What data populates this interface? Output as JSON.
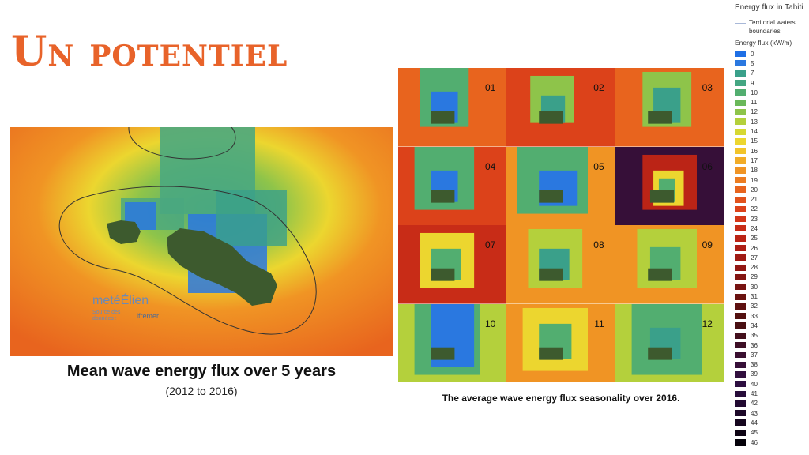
{
  "title": "Un potentiel",
  "main_map": {
    "caption": "Mean wave energy flux over 5 years",
    "subcaption": "(2012 to 2016)",
    "watermark": [
      "metéÉlien",
      "Source des",
      "données :",
      "ifremer"
    ]
  },
  "monthly_grid": {
    "caption": "The average wave energy flux seasonality over 2016.",
    "months": [
      "01",
      "02",
      "03",
      "04",
      "05",
      "06",
      "07",
      "08",
      "09",
      "10",
      "11",
      "12"
    ]
  },
  "legend": {
    "title": "Energy flux in Tahiti",
    "territorial_label": "Territorial waters boundaries",
    "flux_title": "Energy flux (kW/m)",
    "items": [
      {
        "label": "0",
        "color": "#1f6fe5"
      },
      {
        "label": "5",
        "color": "#2a78e0"
      },
      {
        "label": "7",
        "color": "#3aa08a"
      },
      {
        "label": "9",
        "color": "#44a682"
      },
      {
        "label": "10",
        "color": "#52ae70"
      },
      {
        "label": "11",
        "color": "#6ab85a"
      },
      {
        "label": "12",
        "color": "#8ec44a"
      },
      {
        "label": "13",
        "color": "#b4d03c"
      },
      {
        "label": "14",
        "color": "#d6d833"
      },
      {
        "label": "15",
        "color": "#ecd62f"
      },
      {
        "label": "16",
        "color": "#f2c42a"
      },
      {
        "label": "17",
        "color": "#f2ac27"
      },
      {
        "label": "18",
        "color": "#f09424"
      },
      {
        "label": "19",
        "color": "#ec7c21"
      },
      {
        "label": "20",
        "color": "#e8641e"
      },
      {
        "label": "21",
        "color": "#e2521c"
      },
      {
        "label": "22",
        "color": "#dc421a"
      },
      {
        "label": "23",
        "color": "#d43618"
      },
      {
        "label": "24",
        "color": "#c82c17"
      },
      {
        "label": "25",
        "color": "#bb2416"
      },
      {
        "label": "26",
        "color": "#ae1e15"
      },
      {
        "label": "27",
        "color": "#a01a14"
      },
      {
        "label": "28",
        "color": "#921713"
      },
      {
        "label": "29",
        "color": "#841512"
      },
      {
        "label": "30",
        "color": "#771311"
      },
      {
        "label": "31",
        "color": "#6a1210"
      },
      {
        "label": "32",
        "color": "#5e1110"
      },
      {
        "label": "33",
        "color": "#53100f"
      },
      {
        "label": "34",
        "color": "#490f12"
      },
      {
        "label": "35",
        "color": "#430f1c"
      },
      {
        "label": "36",
        "color": "#3e0f26"
      },
      {
        "label": "37",
        "color": "#3a0f30"
      },
      {
        "label": "38",
        "color": "#360f38"
      },
      {
        "label": "39",
        "color": "#320f3e"
      },
      {
        "label": "40",
        "color": "#2d0e40"
      },
      {
        "label": "41",
        "color": "#280c3a"
      },
      {
        "label": "42",
        "color": "#220a32"
      },
      {
        "label": "43",
        "color": "#1c0828"
      },
      {
        "label": "44",
        "color": "#15061e"
      },
      {
        "label": "45",
        "color": "#0e0414"
      },
      {
        "label": "46",
        "color": "#05020a"
      }
    ]
  }
}
